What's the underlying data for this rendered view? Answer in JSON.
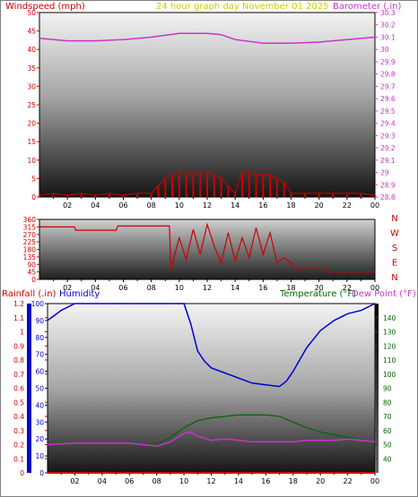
{
  "header": {
    "wind_label": "Windspeed (mph)",
    "title": "24 hour graph day   November 01 2025",
    "barometer_label": "Barometer (.in)"
  },
  "bottom_header": {
    "rainfall_label": "Rainfall (.in)",
    "humidity_label": "Humidity",
    "temperature_label": "Temperature (°F)",
    "dewpoint_label": "Dew Point (°F)"
  },
  "compass_letters": [
    "N",
    "W",
    "S",
    "E",
    "N"
  ],
  "colors": {
    "wind": "#cc0000",
    "barometer": "#cc33cc",
    "title": "#cccc00",
    "rain": "#cc0000",
    "humidity": "#0000cc",
    "temperature": "#006600",
    "dewpoint": "#cc33cc"
  },
  "chart_data": [
    {
      "id": "wind",
      "type": "line",
      "x_ticks": [
        "02",
        "04",
        "06",
        "08",
        "10",
        "12",
        "14",
        "16",
        "18",
        "20",
        "22",
        "00"
      ],
      "left_axis": {
        "label": "Windspeed (mph)",
        "ylim": [
          0,
          50
        ],
        "ticks": [
          0,
          5,
          10,
          15,
          20,
          25,
          30,
          35,
          40,
          45,
          50
        ]
      },
      "right_axis": {
        "label": "Barometer (.in)",
        "ylim": [
          28.8,
          30.3
        ],
        "ticks": [
          "28.8",
          "28.9",
          "29",
          "29.1",
          "29.2",
          "29.3",
          "29.4",
          "29.5",
          "29.6",
          "29.7",
          "29.8",
          "29.9",
          "30",
          "30.1",
          "30.2",
          "30.3"
        ]
      },
      "series": [
        {
          "name": "Windspeed",
          "x": [
            0,
            1,
            2,
            3,
            4,
            5,
            6,
            7,
            8,
            8.5,
            9,
            9.5,
            10,
            10.5,
            11,
            11.5,
            12,
            12.5,
            13,
            13.5,
            14,
            14.5,
            15,
            15.5,
            16,
            16.5,
            17,
            17.5,
            18,
            19,
            20,
            21,
            22,
            23,
            24
          ],
          "values": [
            0.5,
            1,
            0.5,
            1,
            0.5,
            1,
            0.5,
            1,
            1,
            3,
            5,
            6,
            7,
            7,
            6,
            7,
            7,
            6,
            5,
            3,
            1,
            7,
            7,
            6,
            6,
            6,
            5,
            4,
            1,
            1,
            1,
            1,
            1,
            1,
            0.5
          ]
        },
        {
          "name": "Barometer",
          "x": [
            0,
            2,
            4,
            6,
            8,
            10,
            12,
            13,
            14,
            16,
            18,
            20,
            22,
            24
          ],
          "values": [
            30.09,
            30.07,
            30.07,
            30.08,
            30.1,
            30.13,
            30.13,
            30.12,
            30.08,
            30.05,
            30.05,
            30.06,
            30.08,
            30.1
          ]
        }
      ]
    },
    {
      "id": "direction",
      "type": "line",
      "x_ticks": [
        "02",
        "04",
        "06",
        "08",
        "10",
        "12",
        "14",
        "16",
        "18",
        "20",
        "22",
        "00"
      ],
      "left_axis": {
        "ylim": [
          0,
          360
        ],
        "ticks": [
          0,
          45,
          90,
          135,
          180,
          225,
          270,
          315,
          360
        ]
      },
      "series": [
        {
          "name": "Wind Direction",
          "x": [
            0,
            2.5,
            2.6,
            5.5,
            5.6,
            9.3,
            9.4,
            10,
            10.5,
            11,
            11.5,
            12,
            12.5,
            13,
            13.5,
            14,
            14.5,
            15,
            15.5,
            16,
            16.5,
            17,
            17.5,
            18,
            18.1,
            20.5,
            20.6,
            24
          ],
          "values": [
            315,
            315,
            295,
            295,
            320,
            320,
            60,
            250,
            120,
            300,
            150,
            330,
            200,
            100,
            280,
            110,
            250,
            130,
            310,
            150,
            280,
            100,
            130,
            100,
            70,
            70,
            45,
            45
          ]
        }
      ]
    },
    {
      "id": "rain-humidity-temp",
      "type": "line",
      "x_ticks": [
        "02",
        "04",
        "06",
        "08",
        "10",
        "12",
        "14",
        "16",
        "18",
        "20",
        "22",
        "00"
      ],
      "left_axis": {
        "label": "Rainfall (.in)",
        "ylim": [
          0,
          1.2
        ],
        "ticks": [
          "0",
          "0.1",
          "0.2",
          "0.3",
          "0.4",
          "0.5",
          "0.6",
          "0.7",
          "0.8",
          "0.9",
          "1",
          "1.1",
          "1.2"
        ]
      },
      "humidity_axis": {
        "label": "Humidity",
        "ylim": [
          0,
          100
        ],
        "ticks": [
          0,
          10,
          20,
          30,
          40,
          50,
          60,
          70,
          80,
          90,
          100
        ]
      },
      "right_axis": {
        "label": "Temperature (°F)",
        "ylim": [
          30,
          150
        ],
        "ticks": [
          40,
          50,
          60,
          70,
          80,
          90,
          100,
          110,
          120,
          130,
          140
        ]
      },
      "series": [
        {
          "name": "Humidity",
          "x": [
            0,
            1,
            2,
            3,
            4,
            5,
            6,
            7,
            8,
            9,
            10,
            10.5,
            11,
            11.5,
            12,
            13,
            14,
            15,
            16,
            17,
            17.5,
            18,
            19,
            20,
            21,
            22,
            23,
            24
          ],
          "values": [
            90,
            96,
            100,
            100,
            100,
            100,
            100,
            100,
            100,
            100,
            100,
            88,
            72,
            66,
            62,
            59,
            56,
            53,
            52,
            51,
            54,
            60,
            74,
            84,
            90,
            94,
            96,
            100
          ]
        },
        {
          "name": "Temperature",
          "x": [
            0,
            2,
            4,
            6,
            8,
            9,
            10,
            11,
            12,
            13,
            14,
            15,
            16,
            17,
            18,
            19,
            20,
            21,
            22,
            23,
            24
          ],
          "values": [
            50,
            51,
            51,
            51,
            50,
            55,
            62,
            67,
            69,
            70,
            71,
            71,
            71,
            70,
            66,
            62,
            59,
            57,
            55,
            53,
            52
          ]
        },
        {
          "name": "Dew Point",
          "x": [
            0,
            2,
            4,
            6,
            7,
            8,
            9,
            10,
            10.5,
            11,
            12,
            13,
            14,
            15,
            16,
            17,
            18,
            19,
            20,
            21,
            22,
            23,
            24
          ],
          "values": [
            50,
            51,
            51,
            51,
            50,
            49,
            52,
            58,
            59,
            56,
            53,
            54,
            53,
            52,
            52,
            52,
            52,
            53,
            53,
            53,
            54,
            53,
            52
          ]
        },
        {
          "name": "Rainfall",
          "x": [
            0,
            24
          ],
          "values": [
            0,
            0
          ]
        }
      ]
    }
  ]
}
